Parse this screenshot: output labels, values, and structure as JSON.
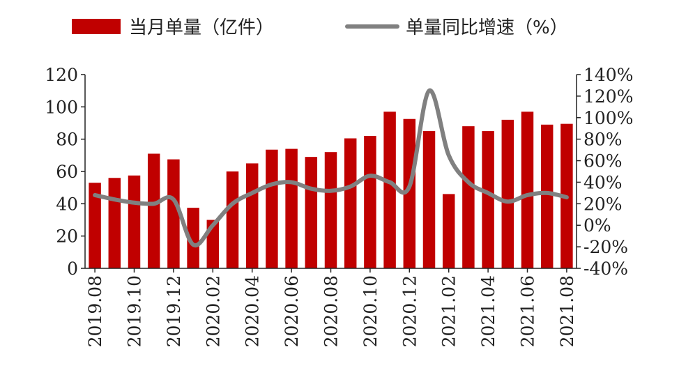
{
  "chart_data": {
    "type": "bar+line",
    "categories": [
      "2019.08",
      "2019.09",
      "2019.10",
      "2019.11",
      "2019.12",
      "2020.01",
      "2020.02",
      "2020.03",
      "2020.04",
      "2020.05",
      "2020.06",
      "2020.07",
      "2020.08",
      "2020.09",
      "2020.10",
      "2020.11",
      "2020.12",
      "2021.01",
      "2021.02",
      "2021.03",
      "2021.04",
      "2021.05",
      "2021.06",
      "2021.07",
      "2021.08"
    ],
    "x_tick_labels": [
      "2019.08",
      "",
      "2019.10",
      "",
      "2019.12",
      "",
      "2020.02",
      "",
      "2020.04",
      "",
      "2020.06",
      "",
      "2020.08",
      "",
      "2020.10",
      "",
      "2020.12",
      "",
      "2021.02",
      "",
      "2021.04",
      "",
      "2021.06",
      "",
      "2021.08"
    ],
    "series": [
      {
        "name": "当月单量（亿件）",
        "type": "bar",
        "axis": "left",
        "color": "#c00000",
        "values": [
          53,
          56,
          57.5,
          71,
          67.5,
          37.5,
          30,
          60,
          65,
          73.5,
          74,
          69,
          72,
          80.5,
          82,
          97,
          92.5,
          85,
          46,
          88,
          85,
          92,
          97,
          89,
          89.5
        ]
      },
      {
        "name": "单量同比增速（%）",
        "type": "line",
        "axis": "right",
        "color": "#808080",
        "values": [
          28,
          24,
          21,
          20,
          24,
          -18,
          0,
          20,
          30,
          38,
          40,
          34,
          32,
          36,
          46,
          40,
          36,
          125,
          65,
          40,
          30,
          22,
          28,
          30,
          26
        ]
      }
    ],
    "y_left": {
      "lim": [
        0,
        120
      ],
      "ticks": [
        "0",
        "20",
        "40",
        "60",
        "80",
        "100",
        "120"
      ]
    },
    "y_right": {
      "lim": [
        -40,
        140
      ],
      "ticks": [
        "-40%",
        "-20%",
        "0%",
        "20%",
        "40%",
        "60%",
        "80%",
        "100%",
        "120%",
        "140%"
      ]
    },
    "legend_position": "top",
    "grid": false
  }
}
